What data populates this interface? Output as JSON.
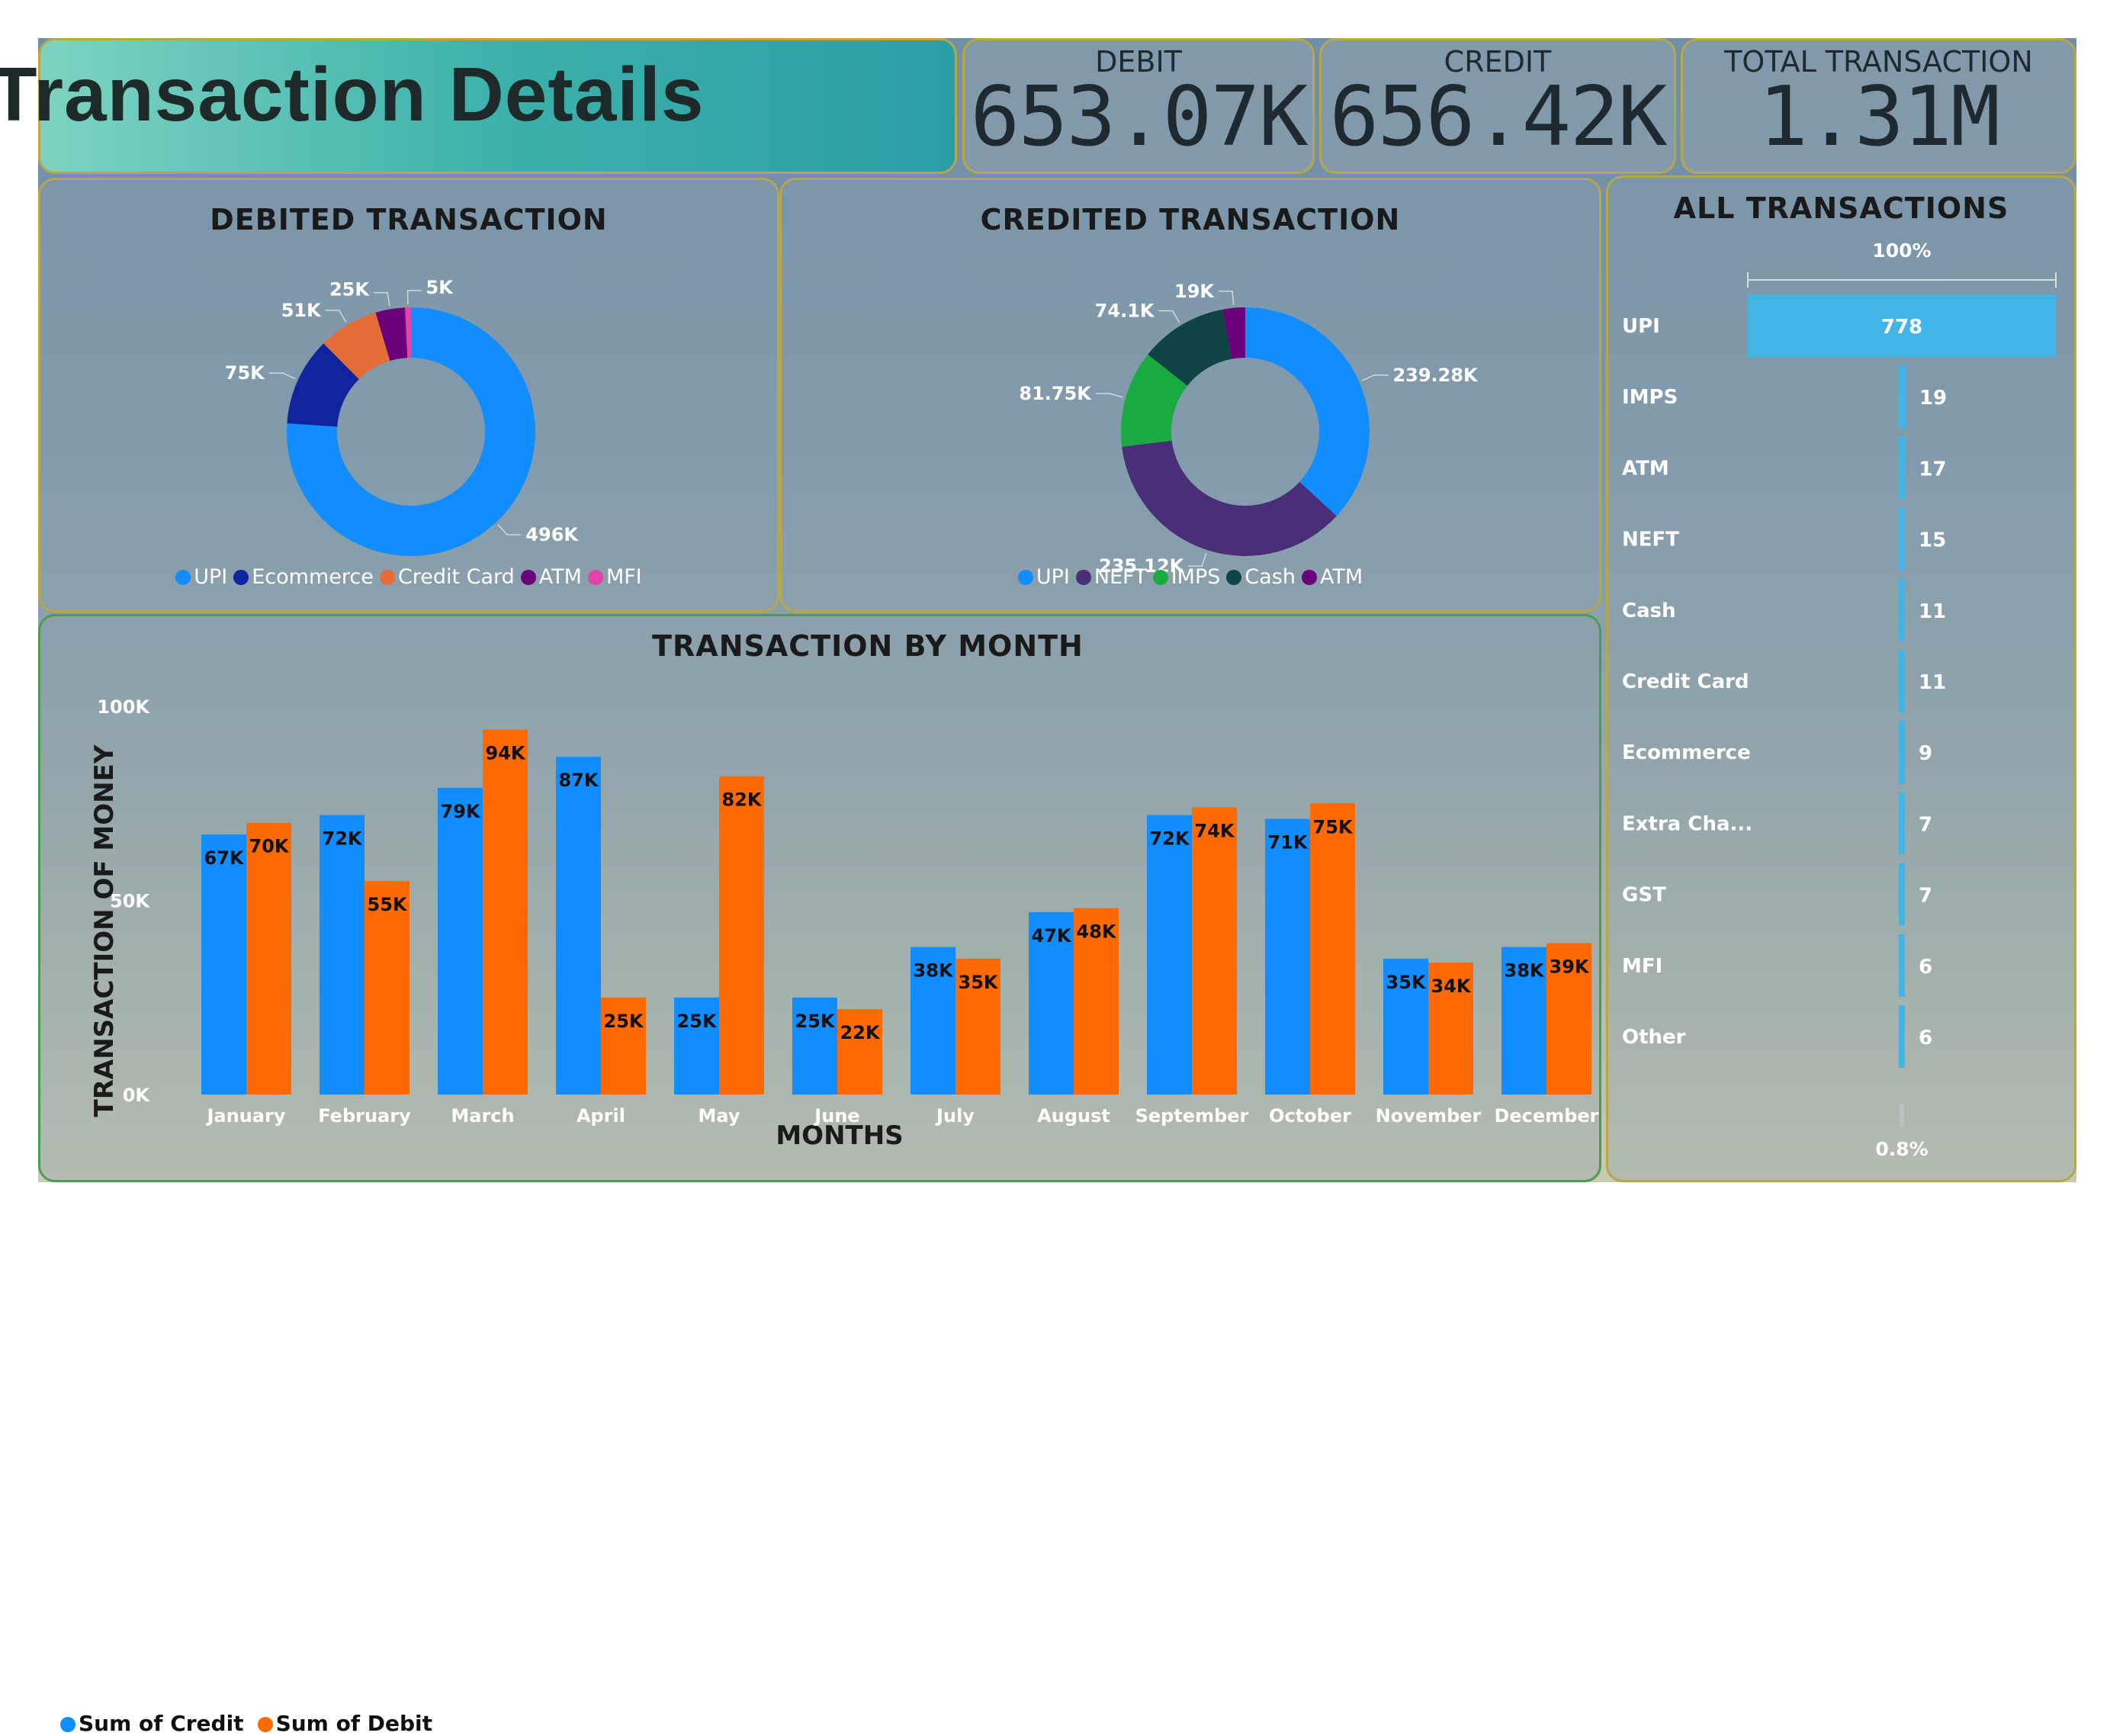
{
  "header": {
    "title": "Transaction Details"
  },
  "kpis": {
    "debit": {
      "label": "DEBIT",
      "value": "653.07K"
    },
    "credit": {
      "label": "CREDIT",
      "value": "656.42K"
    },
    "total": {
      "label": "TOTAL TRANSACTION",
      "value": "1.31M"
    }
  },
  "colors": {
    "upi": "#118dff",
    "ecommerce": "#12239e",
    "credit_card": "#e66c37",
    "atm": "#6b007b",
    "mfi": "#e044a7",
    "neft": "#4a2f78",
    "imps": "#1aab40",
    "cash": "#0f4444",
    "credit_series": "#118dff",
    "debit_series": "#ff6a00",
    "funnel_bar": "#41b6e6"
  },
  "chart_data": [
    {
      "type": "pie",
      "variant": "donut",
      "title": "DEBITED TRANSACTION",
      "categories": [
        "UPI",
        "Ecommerce",
        "Credit Card",
        "ATM",
        "MFI"
      ],
      "values": [
        496,
        75,
        51,
        25,
        5
      ],
      "labels": [
        "496K",
        "75K",
        "51K",
        "25K",
        "5K"
      ],
      "legend": "bottom"
    },
    {
      "type": "pie",
      "variant": "donut",
      "title": "CREDITED TRANSACTION",
      "categories": [
        "UPI",
        "NEFT",
        "IMPS",
        "Cash",
        "ATM"
      ],
      "values": [
        239.28,
        235.12,
        81.75,
        74.1,
        19
      ],
      "labels": [
        "239.28K",
        "235.12K",
        "81.75K",
        "74.1K",
        "19K"
      ],
      "legend": "bottom"
    },
    {
      "type": "bar",
      "title": "TRANSACTION BY MONTH",
      "xlabel": "MONTHS",
      "ylabel": "TRANSACTION OF MONEY",
      "ylim": [
        0,
        100
      ],
      "yticks": [
        "0K",
        "50K",
        "100K"
      ],
      "categories": [
        "January",
        "February",
        "March",
        "April",
        "May",
        "June",
        "July",
        "August",
        "September",
        "October",
        "November",
        "December"
      ],
      "series": [
        {
          "name": "Sum of Credit",
          "values": [
            67,
            72,
            79,
            87,
            25,
            25,
            38,
            47,
            72,
            71,
            35,
            38
          ],
          "labels": [
            "67K",
            "72K",
            "79K",
            "87K",
            "25K",
            "25K",
            "38K",
            "47K",
            "72K",
            "71K",
            "35K",
            "38K"
          ]
        },
        {
          "name": "Sum of Debit",
          "values": [
            70,
            55,
            94,
            25,
            82,
            22,
            35,
            48,
            74,
            75,
            34,
            39
          ],
          "labels": [
            "70K",
            "55K",
            "94K",
            "25K",
            "82K",
            "22K",
            "35K",
            "48K",
            "74K",
            "75K",
            "34K",
            "39K"
          ]
        }
      ],
      "legend": "bottom-left"
    },
    {
      "type": "bar",
      "variant": "funnel",
      "title": "ALL TRANSACTIONS",
      "top_label": "100%",
      "bottom_label": "0.8%",
      "categories": [
        "UPI",
        "IMPS",
        "ATM",
        "NEFT",
        "Cash",
        "Credit Card",
        "Ecommerce",
        "Extra Cha...",
        "GST",
        "MFI",
        "Other"
      ],
      "values": [
        778,
        19,
        17,
        15,
        11,
        11,
        9,
        7,
        7,
        6,
        6
      ]
    }
  ]
}
